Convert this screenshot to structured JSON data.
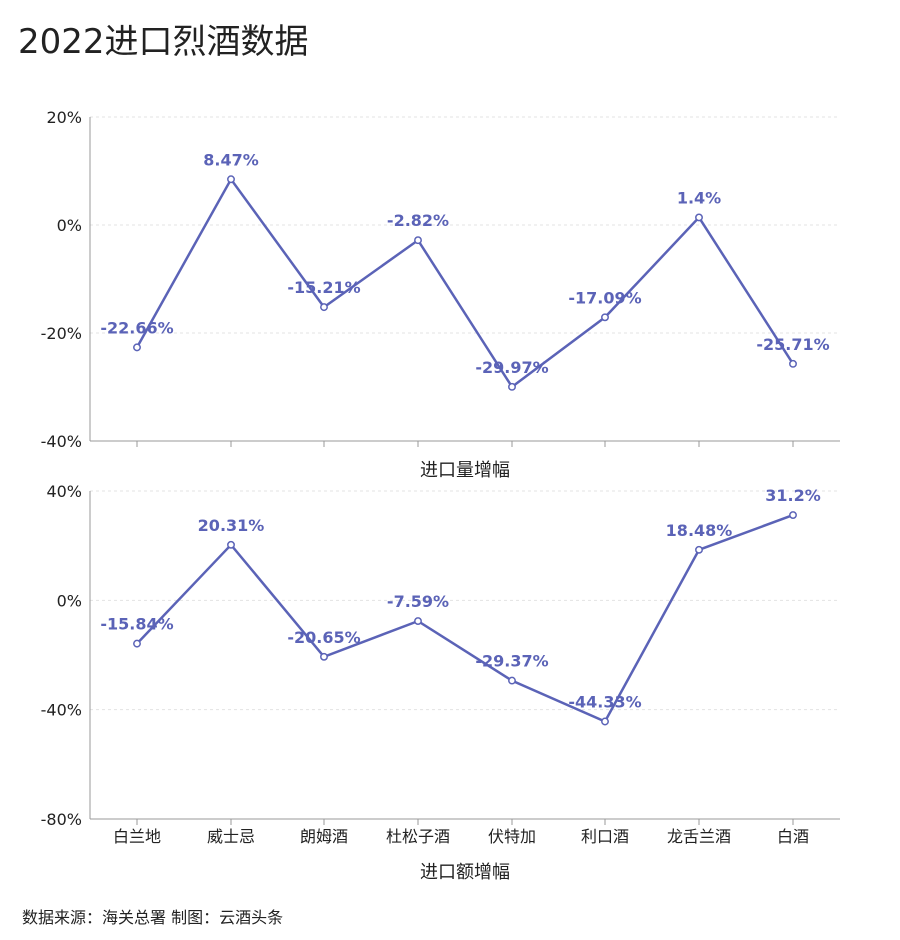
{
  "page": {
    "title": "2022进口烈酒数据",
    "source": "数据来源：海关总署      制图：云酒头条"
  },
  "chart_data": [
    {
      "type": "line",
      "categories": [
        "白兰地",
        "威士忌",
        "朗姆酒",
        "杜松子酒",
        "伏特加",
        "利口酒",
        "龙舌兰酒",
        "白酒"
      ],
      "series": [
        {
          "values": [
            -22.66,
            8.47,
            -15.21,
            -2.82,
            -29.97,
            -17.09,
            1.4,
            -25.71
          ],
          "labels": [
            "-22.66%",
            "8.47%",
            "-15.21%",
            "-2.82%",
            "-29.97%",
            "-17.09%",
            "1.4%",
            "-25.71%"
          ]
        }
      ],
      "xlabel": "进口量增幅",
      "ylabel": "",
      "ylim": [
        -40,
        20
      ],
      "yticks": [
        20,
        0,
        -20,
        -40
      ],
      "ytick_labels": [
        "20%",
        "0%",
        "-20%",
        "-40%"
      ],
      "grid": true,
      "color": "#5b63b7"
    },
    {
      "type": "line",
      "categories": [
        "白兰地",
        "威士忌",
        "朗姆酒",
        "杜松子酒",
        "伏特加",
        "利口酒",
        "龙舌兰酒",
        "白酒"
      ],
      "series": [
        {
          "values": [
            -15.84,
            20.31,
            -20.65,
            -7.59,
            -29.37,
            -44.33,
            18.48,
            31.2
          ],
          "labels": [
            "-15.84%",
            "20.31%",
            "-20.65%",
            "-7.59%",
            "-29.37%",
            "-44.33%",
            "18.48%",
            "31.2%"
          ]
        }
      ],
      "xlabel": "进口额增幅",
      "ylabel": "",
      "ylim": [
        -80,
        40
      ],
      "yticks": [
        40,
        0,
        -40,
        -80
      ],
      "ytick_labels": [
        "40%",
        "0%",
        "-40%",
        "-80%"
      ],
      "grid": true,
      "color": "#5b63b7"
    }
  ]
}
